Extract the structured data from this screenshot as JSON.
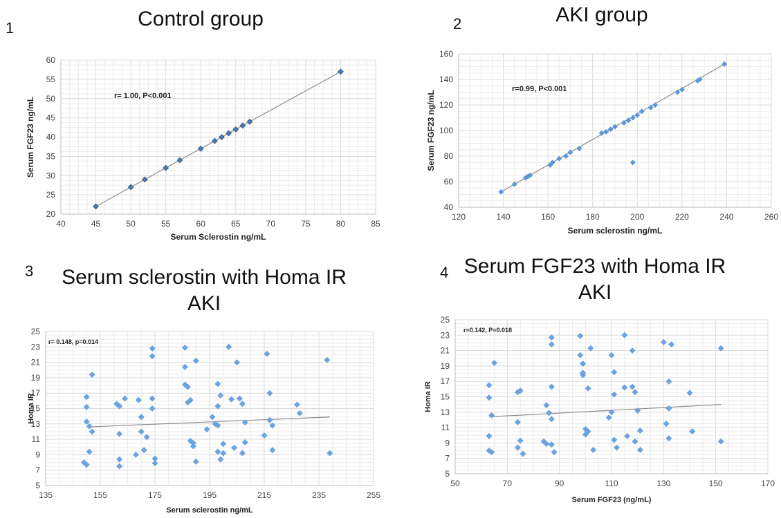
{
  "chart_data": [
    {
      "id": "p1",
      "type": "scatter",
      "panel_number": "1",
      "title": "Control group",
      "subtitle": "",
      "xlabel": "Serum Sclerostin ng/mL",
      "ylabel": "Serum FGF23 ng/mL",
      "annotation": "r= 1.00, P<0.001",
      "xlim": [
        40,
        85
      ],
      "ylim": [
        20,
        60
      ],
      "xticks": [
        40,
        45,
        50,
        55,
        60,
        65,
        70,
        75,
        80,
        85
      ],
      "yticks": [
        20,
        25,
        30,
        35,
        40,
        45,
        50,
        55,
        60
      ],
      "grid": true,
      "trendline": {
        "x": [
          45,
          80
        ],
        "y": [
          22,
          57
        ]
      },
      "marker_color": "#4a7ab0",
      "x": [
        45,
        50,
        52,
        55,
        57,
        60,
        62,
        63,
        64,
        65,
        66,
        67,
        80
      ],
      "y": [
        22,
        27,
        29,
        32,
        34,
        37,
        39,
        40,
        41,
        42,
        43,
        44,
        57
      ]
    },
    {
      "id": "p2",
      "type": "scatter",
      "panel_number": "2",
      "title": "AKI group",
      "subtitle": "",
      "xlabel": "Serum sclerostin ng/mL",
      "ylabel": "Serum FGF23 ng/mL",
      "annotation": "r=0.99, P<0.001",
      "xlim": [
        120,
        260
      ],
      "ylim": [
        40,
        160
      ],
      "xticks": [
        120,
        140,
        160,
        180,
        200,
        220,
        240,
        260
      ],
      "yticks": [
        40,
        60,
        80,
        100,
        120,
        140,
        160
      ],
      "grid": true,
      "trendline": {
        "x": [
          139,
          239
        ],
        "y": [
          52,
          152
        ]
      },
      "marker_color": "#5b97d8",
      "x": [
        139,
        145,
        150,
        151,
        152,
        161,
        162,
        165,
        168,
        170,
        174,
        184,
        186,
        188,
        190,
        194,
        196,
        198,
        198,
        200,
        202,
        206,
        208,
        218,
        220,
        227,
        228,
        239
      ],
      "y": [
        52,
        58,
        63,
        64,
        65,
        73,
        75,
        78,
        80,
        83,
        86,
        98,
        99,
        101,
        103,
        106,
        108,
        110,
        75,
        112,
        115,
        118,
        120,
        130,
        132,
        139,
        140,
        152
      ]
    },
    {
      "id": "p3",
      "type": "scatter",
      "panel_number": "3",
      "title": "Serum sclerostin with Homa IR",
      "subtitle": "AKI",
      "xlabel": "Serum sclerostin ng/mL",
      "ylabel": "Homa IR",
      "annotation": "r= 0.148, p=0.014",
      "xlim": [
        135,
        255
      ],
      "ylim": [
        5,
        25
      ],
      "xticks": [
        135,
        155,
        175,
        195,
        215,
        235,
        255
      ],
      "yticks": [
        5,
        7,
        9,
        11,
        13,
        15,
        17,
        19,
        21,
        23,
        25
      ],
      "grid": true,
      "trendline": {
        "x": [
          150,
          239
        ],
        "y": [
          12.6,
          13.9
        ]
      },
      "marker_color": "#6aa3e0",
      "x": [
        149,
        150,
        150,
        150,
        150,
        151,
        151,
        152,
        152,
        161,
        162,
        162,
        162,
        162,
        164,
        168,
        169,
        170,
        170,
        171,
        172,
        174,
        174,
        174,
        174,
        175,
        175,
        186,
        186,
        186,
        187,
        187,
        188,
        188,
        189,
        189,
        190,
        190,
        194,
        196,
        197,
        198,
        198,
        198,
        198,
        199,
        199,
        200,
        200,
        202,
        203,
        204,
        205,
        206,
        207,
        207,
        208,
        208,
        215,
        216,
        217,
        217,
        218,
        218,
        227,
        228,
        238,
        239
      ],
      "y": [
        8,
        7.7,
        16.5,
        15.2,
        13.3,
        12.7,
        9.4,
        19.4,
        12,
        15.6,
        15.3,
        11.7,
        8.4,
        7.5,
        16.3,
        9,
        16.1,
        13.9,
        12,
        9.6,
        11.3,
        22.8,
        21.8,
        16.3,
        15,
        8.5,
        7.9,
        22.9,
        20.4,
        18.1,
        17.8,
        15.8,
        16.1,
        10.8,
        10.1,
        10.5,
        21.2,
        8.1,
        12.3,
        13.9,
        13,
        18.2,
        15.3,
        12.8,
        9.4,
        8.4,
        16.7,
        10.4,
        9.2,
        23,
        16.2,
        9.9,
        21,
        16.3,
        15.6,
        9.2,
        13.2,
        10.6,
        11.5,
        22.1,
        17,
        13.5,
        12.8,
        9.6,
        15.5,
        14.4,
        21.3,
        9.2
      ]
    },
    {
      "id": "p4",
      "type": "scatter",
      "panel_number": "4",
      "title": "Serum FGF23 with Homa IR",
      "subtitle": "AKI",
      "xlabel": "Serum FGF23 (ng/mL)",
      "ylabel": "Homa IR",
      "annotation": "r=0.142, P=0.018",
      "xlim": [
        50,
        170
      ],
      "ylim": [
        5,
        25
      ],
      "xticks": [
        50,
        70,
        90,
        110,
        130,
        150,
        170
      ],
      "yticks": [
        5,
        7,
        9,
        11,
        13,
        15,
        17,
        19,
        21,
        23,
        25
      ],
      "grid": true,
      "trendline": {
        "x": [
          63,
          152
        ],
        "y": [
          12.4,
          14
        ]
      },
      "marker_color": "#6aa3e0",
      "x": [
        63,
        63,
        63,
        63,
        64,
        64,
        65,
        74,
        74,
        74,
        75,
        75,
        76,
        84,
        85,
        85,
        86,
        87,
        87,
        87,
        87,
        87,
        88,
        98,
        98,
        99,
        99,
        99,
        100,
        100,
        101,
        101,
        102,
        103,
        109,
        110,
        110,
        111,
        111,
        111,
        112,
        115,
        115,
        116,
        118,
        118,
        119,
        119,
        120,
        121,
        121,
        130,
        131,
        132,
        132,
        132,
        133,
        140,
        141,
        152,
        152
      ],
      "y": [
        16.5,
        14.9,
        9.9,
        8,
        7.8,
        12.6,
        19.4,
        15.6,
        11.7,
        8.4,
        15.8,
        9.3,
        7.6,
        9.2,
        8.9,
        13.9,
        12.9,
        16.3,
        12.1,
        22.7,
        21.8,
        8.8,
        7.8,
        22.9,
        20.4,
        19.3,
        18.1,
        17.8,
        10.1,
        10.8,
        16.1,
        10.5,
        21.3,
        8.1,
        12.3,
        13,
        20.4,
        18.2,
        15.3,
        9.4,
        8.4,
        23,
        16.2,
        9.9,
        21,
        16.3,
        15.6,
        9.2,
        13.2,
        10.6,
        8.1,
        22.1,
        11.5,
        17,
        13.5,
        9.6,
        21.8,
        15.5,
        10.5,
        21.3,
        9.2
      ]
    }
  ]
}
